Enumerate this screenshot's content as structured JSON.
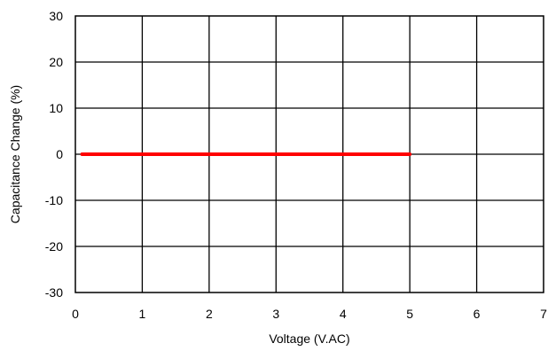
{
  "chart_data": {
    "type": "line",
    "title": "",
    "xlabel": "Voltage  (V.AC)",
    "ylabel": "Capacitance Change (%)",
    "xlim": [
      0,
      7
    ],
    "ylim": [
      -30,
      30
    ],
    "x_ticks": [
      0,
      1,
      2,
      3,
      4,
      5,
      6,
      7
    ],
    "y_ticks": [
      30,
      20,
      10,
      0,
      -10,
      -20,
      -30
    ],
    "x_tick_labels": [
      "0",
      "1",
      "2",
      "3",
      "4",
      "5",
      "6",
      "7"
    ],
    "y_tick_labels": [
      "30",
      "20",
      "10",
      "0",
      "-10",
      "-20",
      "-30"
    ],
    "grid": true,
    "series": [
      {
        "color": "#ff0000",
        "x": [
          0.1,
          5.0
        ],
        "y": [
          0,
          0
        ]
      }
    ]
  }
}
